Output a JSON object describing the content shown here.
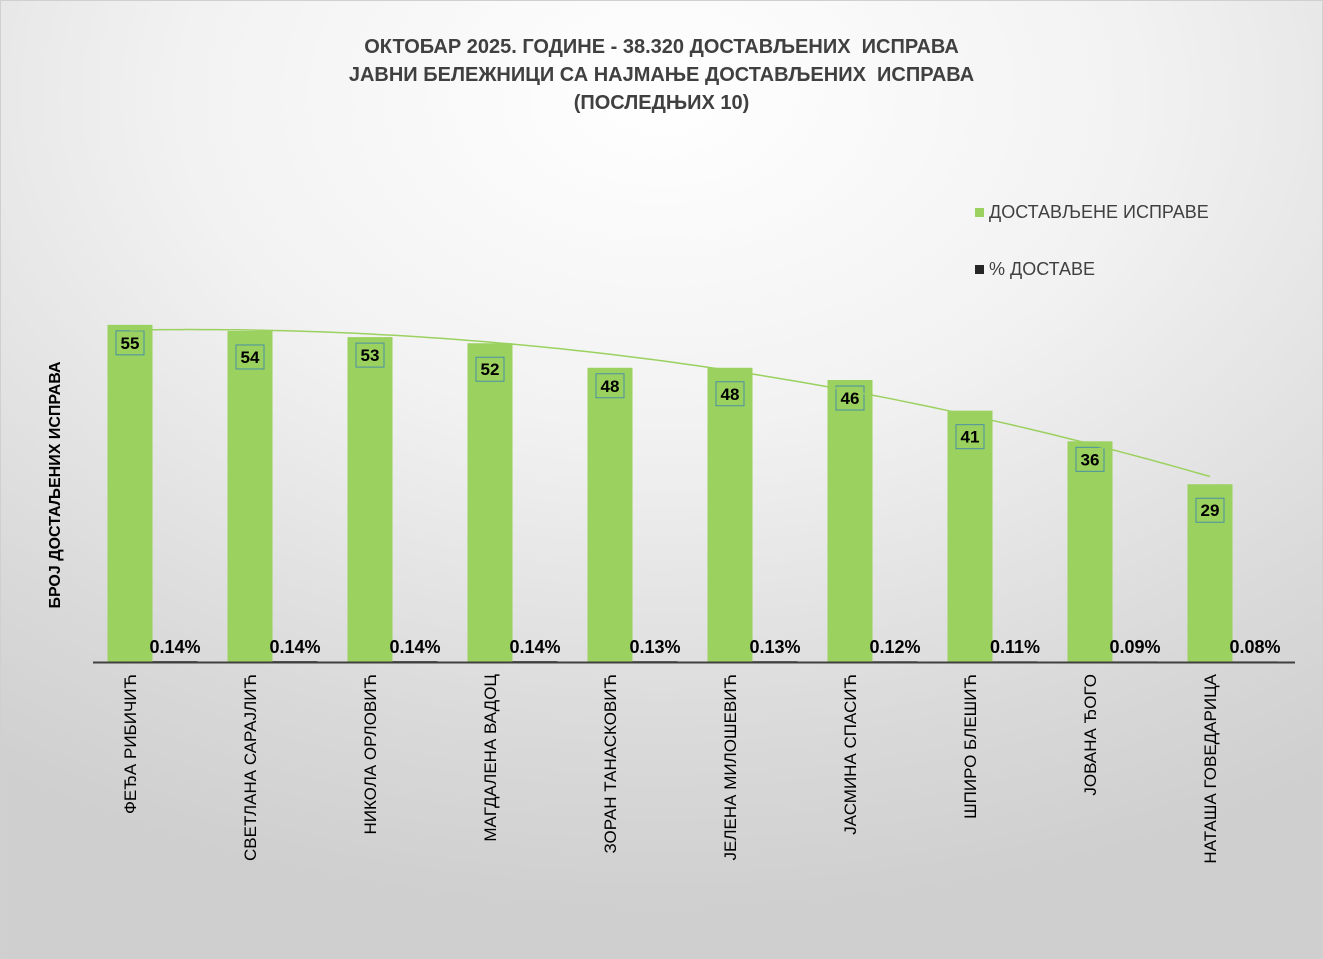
{
  "chart_data": {
    "type": "bar",
    "title": [
      "ОКТОБАР 2025. ГОДИНЕ - 38.320 ДОСТАВЉЕНИХ  ИСПРАВА",
      "ЈАВНИ БЕЛЕЖНИЦИ СА НАЈМАЊЕ ДОСТАВЉЕНИХ  ИСПРАВА",
      "(ПОСЛЕДЊИХ 10)"
    ],
    "ylabel": "БРОЈ ДОСТАЉЕНИХ ИСПРАВА",
    "xlabel": "",
    "categories": [
      "ФЕЂА РИБИЧИЋ",
      "СВЕТЛАНА САРАЈЛИЋ",
      "НИКОЛА ОРЛОВИЋ",
      "МАГДАЛЕНА ВАДОЦ",
      "ЗОРАН ТАНАСКОВИЋ",
      "ЈЕЛЕНА МИЛОШЕВИЋ",
      "ЈАСМИНА СПАСИЋ",
      "ШПИРО БЛЕШИЋ",
      "ЈОВАНА ЂОГО",
      "НАТАША ГОВЕДАРИЦА"
    ],
    "series": [
      {
        "name": "ДОСТАВЉЕНЕ  ИСПРАВЕ",
        "color": "#9bd15f",
        "values": [
          55,
          54,
          53,
          52,
          48,
          48,
          46,
          41,
          36,
          29
        ]
      },
      {
        "name": "% ДОСТАВЕ",
        "color": "#262626",
        "values": [
          0.14,
          0.14,
          0.14,
          0.14,
          0.13,
          0.13,
          0.12,
          0.11,
          0.09,
          0.08
        ],
        "labels": [
          "0.14%",
          "0.14%",
          "0.14%",
          "0.14%",
          "0.13%",
          "0.13%",
          "0.12%",
          "0.11%",
          "0.09%",
          "0.08%"
        ]
      }
    ],
    "trendline": {
      "type": "polynomial",
      "series": "ДОСТАВЉЕНЕ  ИСПРАВЕ",
      "color": "#9bd15f"
    },
    "grid": false,
    "legend_position": "top-right",
    "y_axis_visible": false
  }
}
